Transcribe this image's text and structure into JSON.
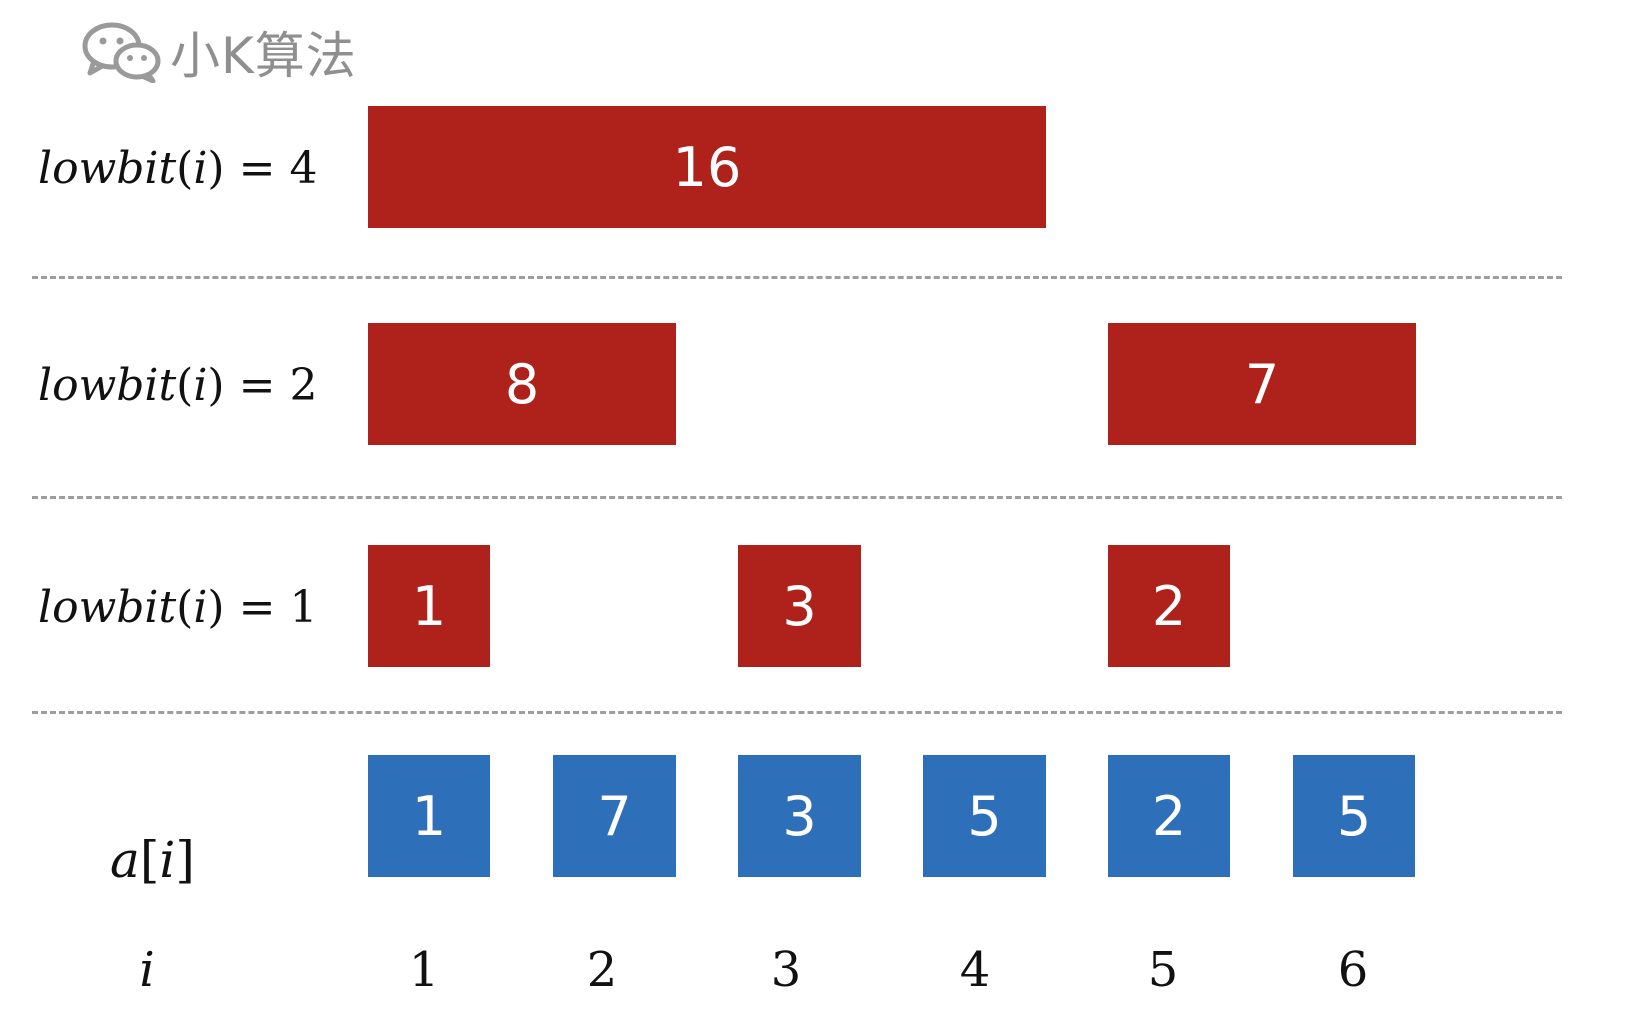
{
  "watermark": {
    "text": "小K算法",
    "icon": "wechat-icon"
  },
  "rows": {
    "lowbit4": {
      "fn": "lowbit",
      "open": "(",
      "var": "i",
      "close": ")",
      "eq": "=",
      "val": "4"
    },
    "lowbit2": {
      "fn": "lowbit",
      "open": "(",
      "var": "i",
      "close": ")",
      "eq": "=",
      "val": "2"
    },
    "lowbit1": {
      "fn": "lowbit",
      "open": "(",
      "var": "i",
      "close": ")",
      "eq": "=",
      "val": "1"
    }
  },
  "tree_values": {
    "row4": [
      "16"
    ],
    "row2": [
      "8",
      "7"
    ],
    "row1": [
      "1",
      "3",
      "2"
    ]
  },
  "array": {
    "label": {
      "name": "a",
      "open": "[",
      "var": "i",
      "close": "]"
    },
    "values": [
      "1",
      "7",
      "3",
      "5",
      "2",
      "5"
    ]
  },
  "index": {
    "label": "i",
    "values": [
      "1",
      "2",
      "3",
      "4",
      "5",
      "6"
    ]
  },
  "colors": {
    "tree": "#ae221b",
    "array": "#2e6fba",
    "separator": "#9e9e9e"
  }
}
